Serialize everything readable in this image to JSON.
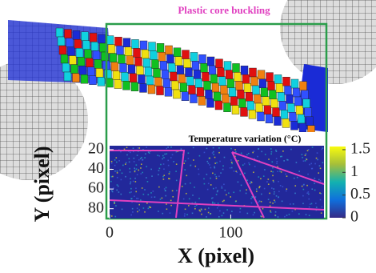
{
  "figure": {
    "fe_title": "Plastic core buckling",
    "map_title": "Temperature variation (°C)",
    "x_label": "X (pixel)",
    "y_label": "Y (pixel)",
    "xlim": [
      0,
      177
    ],
    "xticks": [
      0,
      100
    ],
    "ylim": [
      16,
      90
    ],
    "yticks": [
      20,
      40,
      60,
      80
    ],
    "colorbar": {
      "lim": [
        0,
        1.57
      ],
      "ticks": [
        0,
        0.5,
        1,
        1.5
      ]
    }
  }
}
